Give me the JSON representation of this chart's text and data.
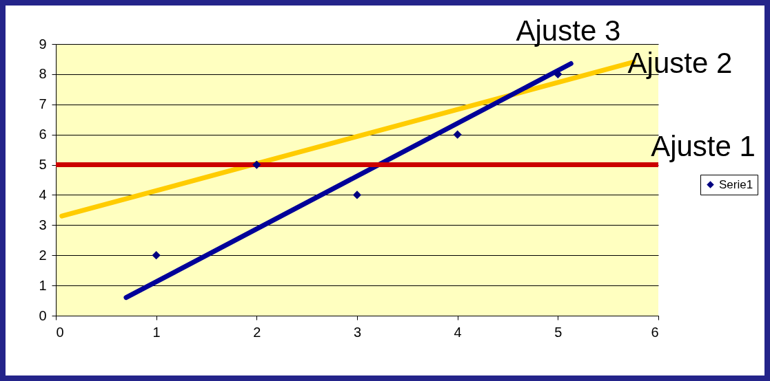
{
  "chart_data": {
    "type": "scatter",
    "x": [
      1,
      2,
      3,
      4,
      5
    ],
    "xlim": [
      0,
      6
    ],
    "xticks": [
      0,
      1,
      2,
      3,
      4,
      5,
      6
    ],
    "ylim": [
      0,
      9
    ],
    "yticks": [
      0,
      1,
      2,
      3,
      4,
      5,
      6,
      7,
      8,
      9
    ],
    "grid": "y",
    "legend": "right",
    "series": [
      {
        "name": "Serie1",
        "color": "#000080",
        "marker": "diamond",
        "values": [
          2,
          5,
          4,
          6,
          8
        ]
      },
      {
        "name": "Ajuste 2",
        "type": "line",
        "color": "#ffcc00",
        "x": [
          0.06,
          5.75
        ],
        "values": [
          3.3,
          8.4
        ]
      },
      {
        "name": "Ajuste 3",
        "type": "line",
        "color": "#000099",
        "x": [
          0.7,
          5.13
        ],
        "values": [
          0.6,
          8.35
        ]
      }
    ],
    "ref_lines": [
      {
        "axis": "y",
        "value": 5,
        "label": "Ajuste 1",
        "color": "#cc0000"
      }
    ]
  }
}
